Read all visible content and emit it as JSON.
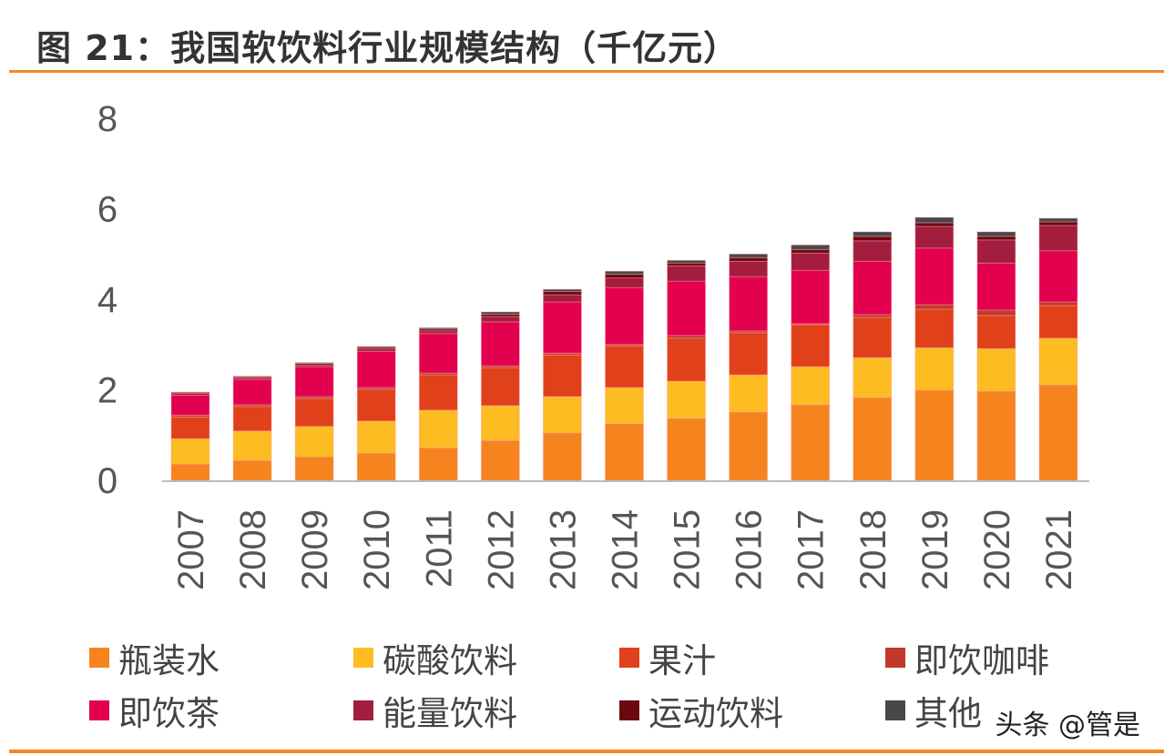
{
  "title": "图 21：我国软饮料行业规模结构（千亿元）",
  "watermark": "头条 @管是",
  "chart_data": {
    "type": "bar",
    "stacked": true,
    "title": "图 21：我国软饮料行业规模结构（千亿元）",
    "xlabel": "",
    "ylabel": "",
    "ylim": [
      0,
      8
    ],
    "yticks": [
      "0",
      "2",
      "4",
      "6",
      "8"
    ],
    "grid": false,
    "legend_position": "bottom",
    "categories": [
      "2007",
      "2008",
      "2009",
      "2010",
      "2011",
      "2012",
      "2013",
      "2014",
      "2015",
      "2016",
      "2017",
      "2018",
      "2019",
      "2020",
      "2021"
    ],
    "series": [
      {
        "name": "瓶装水",
        "color": "#F5841F",
        "values": [
          0.36,
          0.44,
          0.52,
          0.6,
          0.72,
          0.88,
          1.05,
          1.25,
          1.37,
          1.51,
          1.67,
          1.83,
          1.99,
          1.97,
          2.11
        ]
      },
      {
        "name": "碳酸饮料",
        "color": "#FDBD22",
        "values": [
          0.56,
          0.65,
          0.67,
          0.71,
          0.83,
          0.77,
          0.8,
          0.8,
          0.82,
          0.82,
          0.84,
          0.88,
          0.94,
          0.94,
          1.03
        ]
      },
      {
        "name": "果汁",
        "color": "#E0401A",
        "values": [
          0.48,
          0.54,
          0.62,
          0.7,
          0.78,
          0.84,
          0.92,
          0.92,
          0.95,
          0.93,
          0.93,
          0.89,
          0.85,
          0.73,
          0.72
        ]
      },
      {
        "name": "即饮咖啡",
        "color": "#C0392B",
        "values": [
          0.04,
          0.04,
          0.04,
          0.04,
          0.04,
          0.04,
          0.04,
          0.03,
          0.06,
          0.04,
          0.02,
          0.06,
          0.1,
          0.12,
          0.08
        ]
      },
      {
        "name": "即饮茶",
        "color": "#E3004F",
        "values": [
          0.44,
          0.56,
          0.66,
          0.8,
          0.87,
          0.97,
          1.13,
          1.26,
          1.2,
          1.2,
          1.18,
          1.18,
          1.25,
          1.04,
          1.13
        ]
      },
      {
        "name": "能量饮料",
        "color": "#A31D3E",
        "values": [
          0.04,
          0.04,
          0.04,
          0.06,
          0.06,
          0.12,
          0.16,
          0.21,
          0.34,
          0.34,
          0.38,
          0.45,
          0.48,
          0.51,
          0.56
        ]
      },
      {
        "name": "运动饮料",
        "color": "#6A0A0F",
        "values": [
          0.02,
          0.02,
          0.03,
          0.03,
          0.04,
          0.05,
          0.07,
          0.08,
          0.06,
          0.08,
          0.08,
          0.1,
          0.08,
          0.08,
          0.08
        ]
      },
      {
        "name": "其他",
        "color": "#48484C",
        "values": [
          0.01,
          0.01,
          0.02,
          0.02,
          0.03,
          0.05,
          0.05,
          0.07,
          0.06,
          0.08,
          0.1,
          0.1,
          0.12,
          0.1,
          0.08
        ]
      }
    ]
  }
}
